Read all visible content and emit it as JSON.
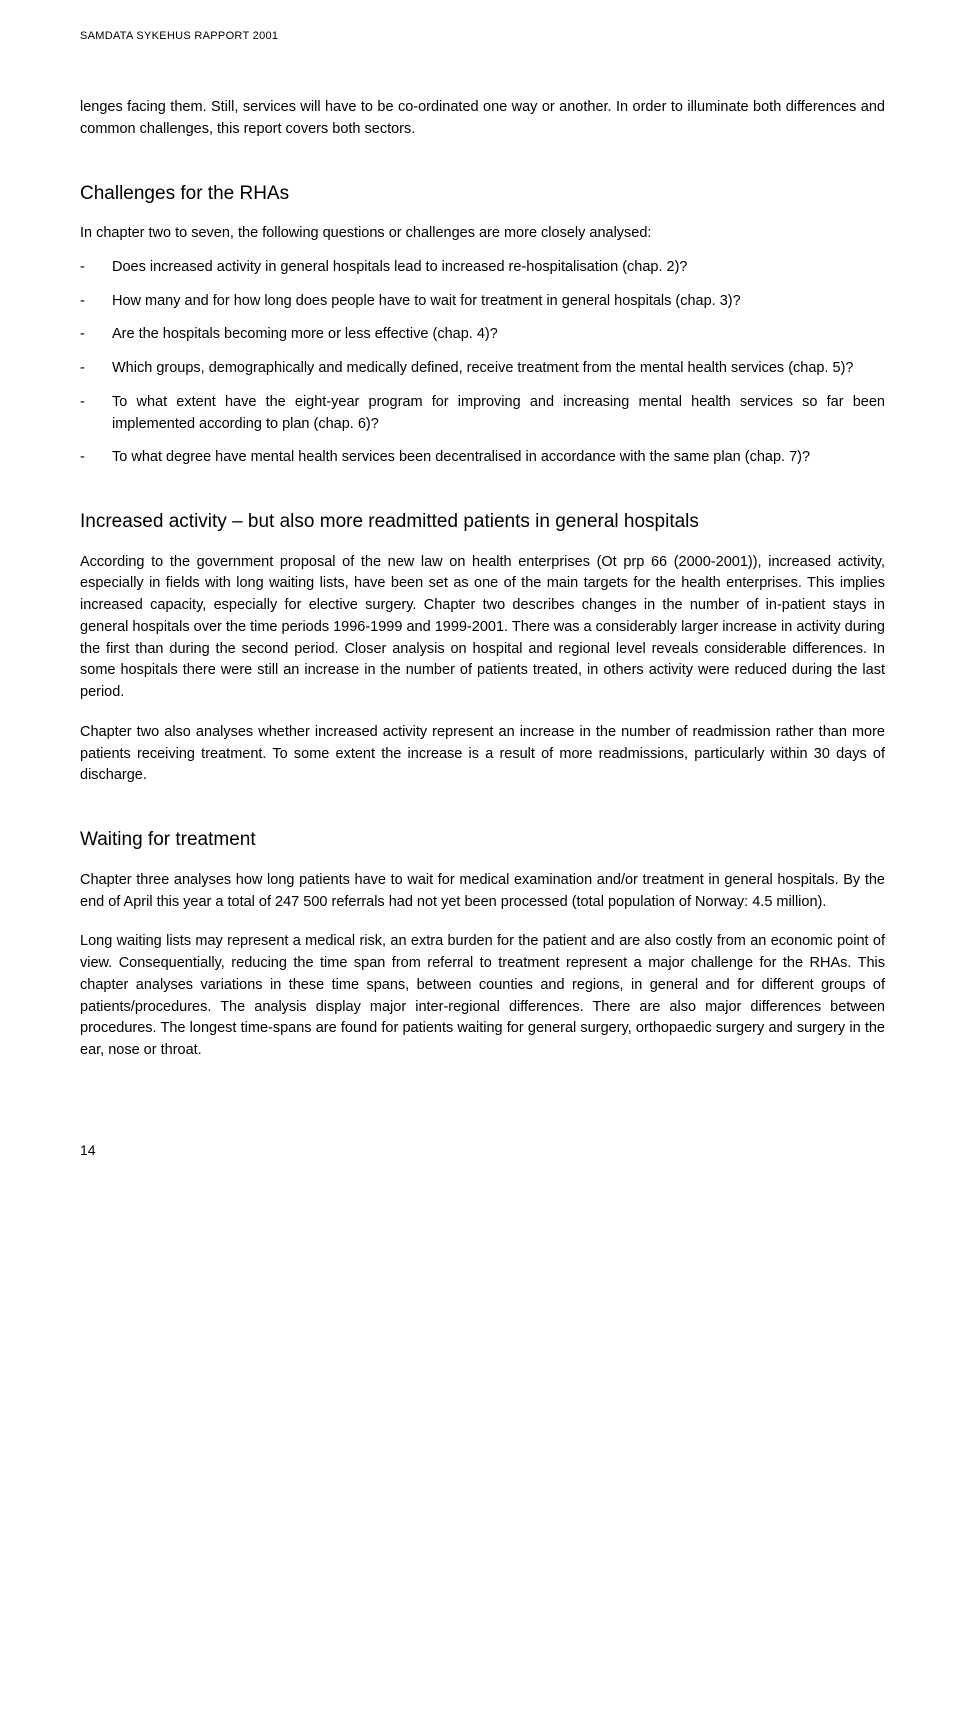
{
  "header": "SAMDATA SYKEHUS RAPPORT 2001",
  "para1": "lenges facing them. Still, services will have to be co-ordinated one way or another. In order to illuminate both differences and common challenges, this report covers both sectors.",
  "section1": {
    "title": "Challenges for the RHAs",
    "intro": "In chapter two to seven, the following questions or challenges are more closely analysed:",
    "items": [
      "Does increased activity in general hospitals lead to increased re-hospitalisation (chap. 2)?",
      "How many and for how long does people have to wait for treatment in general hospitals (chap. 3)?",
      "Are the hospitals becoming more or less effective (chap. 4)?",
      "Which groups, demographically and medically defined, receive treatment from the mental health services (chap. 5)?",
      "To what extent have the eight-year program for improving and increasing mental health services so far been implemented according to plan (chap. 6)?",
      "To what degree have mental health services been decentralised in accordance with the same plan (chap. 7)?"
    ]
  },
  "section2": {
    "title": "Increased activity – but also more readmitted patients in general hospitals",
    "para1": "According to the government proposal of the new law on health enterprises (Ot prp 66 (2000-2001)), increased activity, especially in fields with long waiting lists, have been set as one of the main targets for the health enterprises. This implies increased capacity, especially for elective surgery. Chapter two describes changes in the number of in-patient stays in general hospitals over the time periods 1996-1999 and 1999-2001. There was a considerably larger increase in activity during the first than during the second period.  Closer analysis on hospital and regional level reveals considerable differences. In some hospitals there were still an increase in the number of patients treated, in others activity were reduced during the last period.",
    "para2": "Chapter two also analyses whether increased activity represent an increase in the number of readmission rather than more patients receiving treatment. To some extent the increase is a result of more readmissions, particularly within 30 days of discharge."
  },
  "section3": {
    "title": "Waiting for treatment",
    "para1": "Chapter three analyses how long patients have to wait for medical examination and/or treatment in general hospitals. By the end of April this year a total of 247 500 referrals had not yet been processed (total population of Norway: 4.5 million).",
    "para2": "Long waiting lists may represent a medical risk, an extra burden for the patient and are also costly from an economic point of view. Consequentially, reducing the time span from referral to treatment represent a major challenge for the RHAs. This chapter analyses variations in these time spans, between counties and regions, in general and for different groups of patients/procedures. The analysis display major inter-regional differences. There are also major differences between procedures. The longest time-spans are found for patients waiting for general surgery, orthopaedic surgery and surgery in the ear, nose or throat."
  },
  "pageNumber": "14"
}
